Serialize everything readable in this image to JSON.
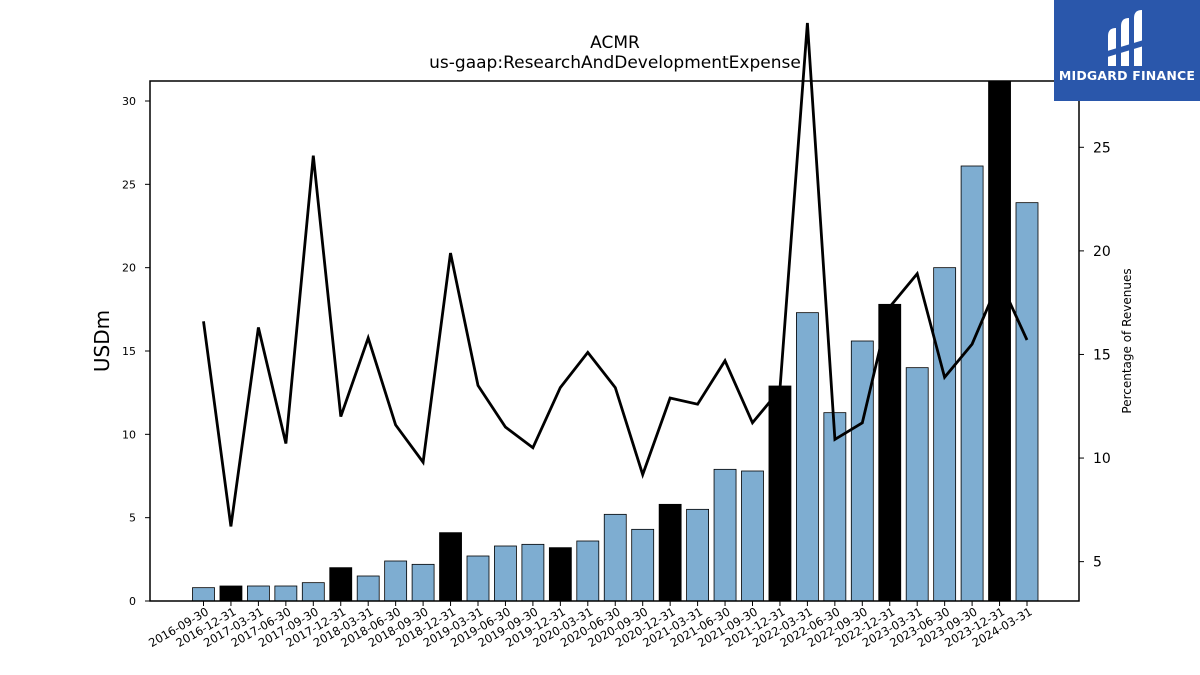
{
  "brand": {
    "name": "MIDGARD FINANCE",
    "color": "#2a57ab"
  },
  "chart_data": {
    "type": "bar+line",
    "title": "ACMR",
    "subtitle": "us-gaap:ResearchAndDevelopmentExpense",
    "ylabel": "USDm",
    "ylabel_right": "Percentage of Revenues",
    "ylim": [
      0,
      31.2
    ],
    "ylim_right": [
      3.1,
      28.2
    ],
    "yticks": [
      0,
      5,
      10,
      15,
      20,
      25,
      30
    ],
    "yticks_right": [
      5,
      10,
      15,
      20,
      25
    ],
    "bar_colors": {
      "quarter": "#7eadd1",
      "year_end": "#000000"
    },
    "categories": [
      "2016-09-30",
      "2016-12-31",
      "2017-03-31",
      "2017-06-30",
      "2017-09-30",
      "2017-12-31",
      "2018-03-31",
      "2018-06-30",
      "2018-09-30",
      "2018-12-31",
      "2019-03-31",
      "2019-06-30",
      "2019-09-30",
      "2019-12-31",
      "2020-03-31",
      "2020-06-30",
      "2020-09-30",
      "2020-12-31",
      "2021-03-31",
      "2021-06-30",
      "2021-09-30",
      "2021-12-31",
      "2022-03-31",
      "2022-06-30",
      "2022-09-30",
      "2022-12-31",
      "2023-03-31",
      "2023-06-30",
      "2023-09-30",
      "2023-12-31",
      "2024-03-31"
    ],
    "series": [
      {
        "kind": "bar",
        "axis": "left",
        "values": [
          0.8,
          0.9,
          0.9,
          0.9,
          1.1,
          2.0,
          1.5,
          2.4,
          2.2,
          4.1,
          2.7,
          3.3,
          3.4,
          3.2,
          3.6,
          5.2,
          4.3,
          5.8,
          5.5,
          7.9,
          7.8,
          12.9,
          17.3,
          11.3,
          15.6,
          17.8,
          14.0,
          20.0,
          26.1,
          31.2,
          23.9
        ]
      },
      {
        "kind": "line",
        "axis": "right",
        "color": "#000000",
        "values": [
          16.6,
          6.7,
          16.3,
          10.7,
          24.6,
          12.0,
          15.8,
          11.6,
          9.8,
          19.9,
          13.5,
          11.5,
          10.5,
          13.4,
          15.1,
          13.4,
          9.2,
          12.9,
          12.6,
          14.7,
          11.7,
          13.3,
          31.0,
          10.9,
          11.7,
          17.3,
          18.9,
          13.9,
          15.5,
          18.6,
          15.7
        ]
      }
    ]
  }
}
